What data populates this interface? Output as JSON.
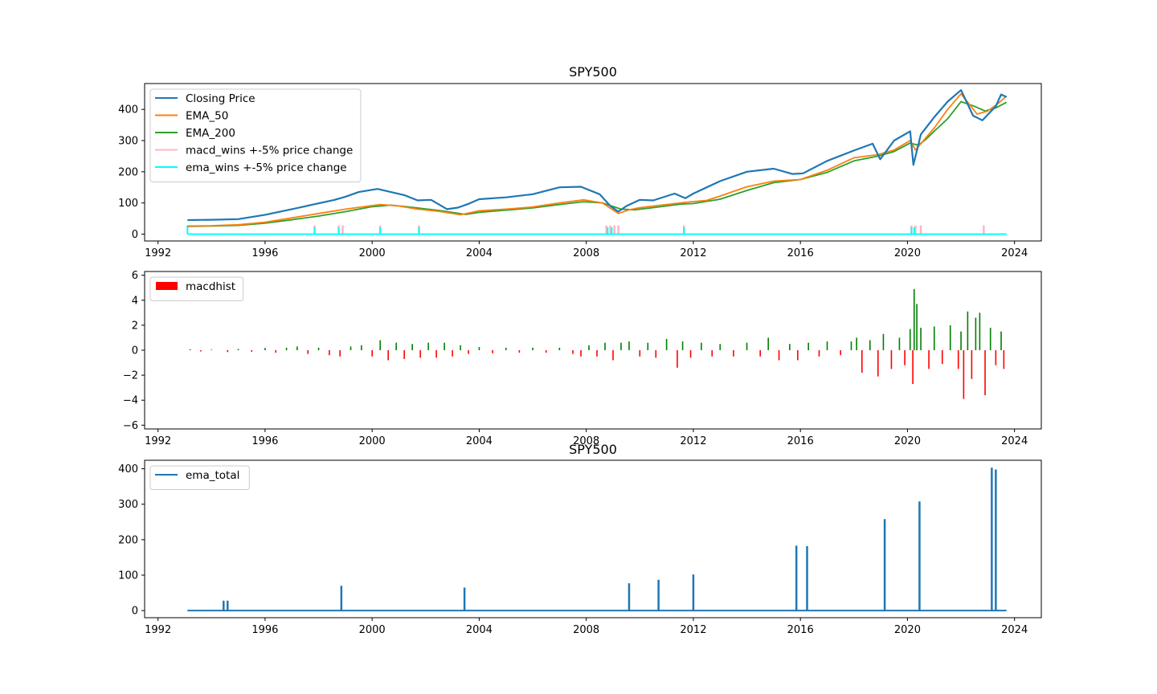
{
  "figure": {
    "panels": [
      {
        "id": "price",
        "title": "SPY500",
        "legend": {
          "placement": "upper-left",
          "entries": [
            {
              "label": "Closing Price",
              "color": "#1f77b4",
              "kind": "line"
            },
            {
              "label": "EMA_50",
              "color": "#ff7f0e",
              "kind": "line"
            },
            {
              "label": "EMA_200",
              "color": "#2ca02c",
              "kind": "line"
            },
            {
              "label": "macd_wins +-5% price change",
              "color": "#ffb6c1",
              "kind": "line"
            },
            {
              "label": "ema_wins +-5% price change",
              "color": "#00ffff",
              "kind": "line"
            }
          ]
        },
        "xticks": [
          "1992",
          "1996",
          "2000",
          "2004",
          "2008",
          "2012",
          "2016",
          "2020",
          "2024"
        ],
        "yticks": [
          "0",
          "100",
          "200",
          "300",
          "400"
        ]
      },
      {
        "id": "macd",
        "title": "",
        "legend": {
          "placement": "upper-left",
          "entries": [
            {
              "label": "macdhist",
              "color": "#ff0000",
              "kind": "patch"
            }
          ]
        },
        "xticks": [
          "1992",
          "1996",
          "2000",
          "2004",
          "2008",
          "2012",
          "2016",
          "2020",
          "2024"
        ],
        "yticks": [
          "−6",
          "−4",
          "−2",
          "0",
          "2",
          "4",
          "6"
        ]
      },
      {
        "id": "total",
        "title": "SPY500",
        "legend": {
          "placement": "upper-left",
          "entries": [
            {
              "label": "ema_total",
              "color": "#1f77b4",
              "kind": "line"
            }
          ]
        },
        "xticks": [
          "1992",
          "1996",
          "2000",
          "2004",
          "2008",
          "2012",
          "2016",
          "2020",
          "2024"
        ],
        "yticks": [
          "0",
          "100",
          "200",
          "300",
          "400"
        ]
      }
    ]
  },
  "chart_data": [
    {
      "type": "line",
      "title": "SPY500",
      "x_unit": "year",
      "xlim": [
        1991.5,
        2025.0
      ],
      "ylim": [
        -22,
        483
      ],
      "grid": false,
      "legend_placement": "upper-left",
      "series": [
        {
          "name": "Closing Price",
          "color": "#1f77b4",
          "x": [
            1993.1,
            1994.0,
            1995.0,
            1996.0,
            1997.0,
            1997.8,
            1998.6,
            1999.0,
            1999.5,
            2000.2,
            2000.7,
            2001.2,
            2001.7,
            2002.2,
            2002.8,
            2003.2,
            2003.6,
            2004.0,
            2005.0,
            2006.0,
            2007.0,
            2007.8,
            2008.5,
            2008.9,
            2009.2,
            2009.5,
            2010.0,
            2010.5,
            2011.3,
            2011.7,
            2012.0,
            2013.0,
            2014.0,
            2015.0,
            2015.7,
            2016.1,
            2017.0,
            2018.0,
            2018.7,
            2018.98,
            2019.5,
            2020.1,
            2020.22,
            2020.5,
            2021.0,
            2021.5,
            2022.0,
            2022.45,
            2022.8,
            2023.3,
            2023.5,
            2023.7
          ],
          "y": [
            45,
            46,
            48,
            62,
            80,
            95,
            110,
            120,
            135,
            145,
            135,
            125,
            108,
            110,
            80,
            85,
            97,
            112,
            118,
            128,
            150,
            152,
            128,
            90,
            72,
            90,
            110,
            108,
            130,
            115,
            130,
            170,
            200,
            210,
            193,
            195,
            235,
            268,
            290,
            240,
            300,
            330,
            222,
            320,
            375,
            425,
            462,
            380,
            365,
            410,
            448,
            440
          ]
        },
        {
          "name": "EMA_50",
          "color": "#ff7f0e",
          "x": [
            1993.1,
            1994.0,
            1995.0,
            1996.0,
            1997.0,
            1998.0,
            1999.0,
            2000.3,
            2001.0,
            2001.7,
            2002.5,
            2003.3,
            2004.0,
            2005.0,
            2006.0,
            2007.0,
            2007.9,
            2008.6,
            2009.2,
            2009.6,
            2010.0,
            2011.0,
            2011.8,
            2012.5,
            2013.0,
            2014.0,
            2015.0,
            2016.0,
            2017.0,
            2018.0,
            2018.9,
            2019.5,
            2020.1,
            2020.3,
            2020.6,
            2021.0,
            2021.5,
            2022.0,
            2022.6,
            2023.0,
            2023.4,
            2023.7
          ],
          "y": [
            26,
            27,
            30,
            38,
            52,
            66,
            80,
            95,
            90,
            80,
            73,
            62,
            75,
            80,
            87,
            100,
            110,
            100,
            66,
            78,
            85,
            95,
            103,
            108,
            122,
            152,
            170,
            175,
            205,
            245,
            255,
            270,
            300,
            270,
            300,
            340,
            400,
            450,
            385,
            395,
            420,
            443
          ]
        },
        {
          "name": "EMA_200",
          "color": "#2ca02c",
          "x": [
            1993.1,
            1994.0,
            1995.0,
            1996.0,
            1997.0,
            1998.0,
            1999.0,
            2000.0,
            2000.7,
            2001.5,
            2002.5,
            2003.5,
            2004.0,
            2005.0,
            2006.0,
            2007.0,
            2007.9,
            2008.6,
            2009.3,
            2009.8,
            2010.5,
            2011.5,
            2012.0,
            2013.0,
            2014.0,
            2015.0,
            2016.0,
            2017.0,
            2018.0,
            2018.9,
            2019.5,
            2020.1,
            2020.4,
            2020.7,
            2021.0,
            2021.5,
            2022.0,
            2022.5,
            2022.9,
            2023.3,
            2023.7
          ],
          "y": [
            25,
            26,
            28,
            35,
            46,
            58,
            72,
            88,
            93,
            86,
            76,
            63,
            70,
            77,
            84,
            95,
            104,
            100,
            80,
            78,
            85,
            96,
            98,
            112,
            140,
            165,
            175,
            198,
            235,
            250,
            265,
            292,
            285,
            305,
            330,
            370,
            425,
            410,
            395,
            405,
            423
          ]
        },
        {
          "name": "macd_wins +-5% price change",
          "color": "#ffb6c1",
          "spikes": [
            {
              "x": 1997.85,
              "y": 28
            },
            {
              "x": 1998.75,
              "y": 28
            },
            {
              "x": 1998.9,
              "y": 28
            },
            {
              "x": 2000.3,
              "y": 28
            },
            {
              "x": 2001.75,
              "y": 28
            },
            {
              "x": 2008.75,
              "y": 28
            },
            {
              "x": 2008.9,
              "y": 28
            },
            {
              "x": 2009.05,
              "y": 28
            },
            {
              "x": 2009.2,
              "y": 28
            },
            {
              "x": 2011.65,
              "y": 28
            },
            {
              "x": 2020.15,
              "y": 28
            },
            {
              "x": 2020.3,
              "y": 28
            },
            {
              "x": 2020.5,
              "y": 28
            },
            {
              "x": 2022.85,
              "y": 28
            }
          ]
        },
        {
          "name": "ema_wins +-5% price change",
          "color": "#00ffff",
          "baseline": {
            "x": [
              1993.1,
              2023.7
            ],
            "y": 0
          },
          "spikes": [
            {
              "x": 1993.1,
              "y": 28
            },
            {
              "x": 1997.85,
              "y": 22
            },
            {
              "x": 1998.75,
              "y": 22
            },
            {
              "x": 2000.3,
              "y": 22
            },
            {
              "x": 2001.75,
              "y": 22
            },
            {
              "x": 2008.8,
              "y": 22
            },
            {
              "x": 2008.95,
              "y": 22
            },
            {
              "x": 2011.65,
              "y": 22
            },
            {
              "x": 2020.15,
              "y": 22
            },
            {
              "x": 2020.25,
              "y": 22
            }
          ]
        }
      ]
    },
    {
      "type": "bar",
      "xlim": [
        1991.5,
        2025.0
      ],
      "ylim": [
        -6.3,
        6.3
      ],
      "grid": false,
      "legend_placement": "upper-left",
      "series": [
        {
          "name": "macdhist",
          "color": "#ff0000",
          "legend_only": true
        }
      ],
      "bars": {
        "positive_color": "#008000",
        "negative_color": "#ff0000",
        "x": [
          1993.2,
          1993.6,
          1994.0,
          1994.6,
          1995.0,
          1995.5,
          1996.0,
          1996.4,
          1996.8,
          1997.2,
          1997.6,
          1998.0,
          1998.4,
          1998.8,
          1999.2,
          1999.6,
          2000.0,
          2000.3,
          2000.6,
          2000.9,
          2001.2,
          2001.5,
          2001.8,
          2002.1,
          2002.4,
          2002.7,
          2003.0,
          2003.3,
          2003.6,
          2004.0,
          2004.5,
          2005.0,
          2005.5,
          2006.0,
          2006.5,
          2007.0,
          2007.5,
          2007.8,
          2008.1,
          2008.4,
          2008.7,
          2009.0,
          2009.3,
          2009.6,
          2010.0,
          2010.3,
          2010.6,
          2011.0,
          2011.4,
          2011.6,
          2011.9,
          2012.3,
          2012.7,
          2013.0,
          2013.5,
          2014.0,
          2014.5,
          2014.8,
          2015.2,
          2015.6,
          2015.9,
          2016.3,
          2016.7,
          2017.0,
          2017.5,
          2017.9,
          2018.1,
          2018.3,
          2018.6,
          2018.9,
          2019.1,
          2019.4,
          2019.7,
          2019.9,
          2020.1,
          2020.2,
          2020.25,
          2020.35,
          2020.5,
          2020.8,
          2021.0,
          2021.3,
          2021.6,
          2021.9,
          2022.0,
          2022.1,
          2022.25,
          2022.4,
          2022.55,
          2022.7,
          2022.9,
          2023.1,
          2023.3,
          2023.5,
          2023.6
        ],
        "values": [
          0.08,
          -0.1,
          0.05,
          -0.15,
          0.1,
          -0.12,
          0.18,
          -0.2,
          0.2,
          0.3,
          -0.3,
          0.2,
          -0.4,
          -0.5,
          0.3,
          0.4,
          -0.5,
          0.8,
          -0.8,
          0.6,
          -0.7,
          0.5,
          -0.6,
          0.6,
          -0.6,
          0.6,
          -0.5,
          0.4,
          -0.3,
          0.25,
          -0.25,
          0.2,
          -0.2,
          0.2,
          -0.2,
          0.2,
          -0.3,
          -0.5,
          0.4,
          -0.5,
          0.6,
          -0.8,
          0.6,
          0.7,
          -0.5,
          0.6,
          -0.6,
          0.9,
          -1.4,
          0.7,
          -0.6,
          0.6,
          -0.5,
          0.5,
          -0.5,
          0.6,
          -0.5,
          1.0,
          -0.8,
          0.5,
          -0.8,
          0.6,
          -0.5,
          0.7,
          -0.4,
          0.7,
          1.0,
          -1.8,
          0.8,
          -2.1,
          1.3,
          -1.5,
          1.0,
          -1.2,
          1.7,
          -2.7,
          4.9,
          3.7,
          1.8,
          -1.5,
          1.9,
          -1.1,
          2.0,
          -1.5,
          1.5,
          -3.9,
          3.1,
          -2.3,
          2.6,
          3.0,
          -3.6,
          1.8,
          -1.2,
          1.5,
          -1.5
        ]
      }
    },
    {
      "type": "line",
      "title": "SPY500",
      "xlim": [
        1991.5,
        2025.0
      ],
      "ylim": [
        -20,
        424
      ],
      "grid": false,
      "legend_placement": "upper-left",
      "series": [
        {
          "name": "ema_total",
          "color": "#1f77b4",
          "baseline": {
            "x": [
              1993.1,
              2023.7
            ],
            "y": 0
          },
          "spikes": [
            {
              "x": 1994.45,
              "y": 28
            },
            {
              "x": 1994.6,
              "y": 28
            },
            {
              "x": 1998.85,
              "y": 70
            },
            {
              "x": 2003.45,
              "y": 65
            },
            {
              "x": 2009.6,
              "y": 77
            },
            {
              "x": 2010.7,
              "y": 87
            },
            {
              "x": 2012.0,
              "y": 102
            },
            {
              "x": 2015.85,
              "y": 183
            },
            {
              "x": 2016.25,
              "y": 182
            },
            {
              "x": 2019.15,
              "y": 258
            },
            {
              "x": 2020.45,
              "y": 308
            },
            {
              "x": 2023.15,
              "y": 403
            },
            {
              "x": 2023.3,
              "y": 398
            }
          ]
        }
      ]
    }
  ]
}
